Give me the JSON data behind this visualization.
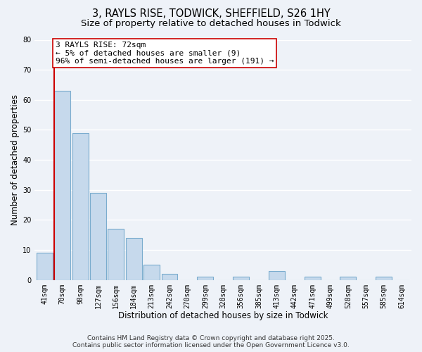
{
  "title": "3, RAYLS RISE, TODWICK, SHEFFIELD, S26 1HY",
  "subtitle": "Size of property relative to detached houses in Todwick",
  "xlabel": "Distribution of detached houses by size in Todwick",
  "ylabel": "Number of detached properties",
  "categories": [
    "41sqm",
    "70sqm",
    "98sqm",
    "127sqm",
    "156sqm",
    "184sqm",
    "213sqm",
    "242sqm",
    "270sqm",
    "299sqm",
    "328sqm",
    "356sqm",
    "385sqm",
    "413sqm",
    "442sqm",
    "471sqm",
    "499sqm",
    "528sqm",
    "557sqm",
    "585sqm",
    "614sqm"
  ],
  "values": [
    9,
    63,
    49,
    29,
    17,
    14,
    5,
    2,
    0,
    1,
    0,
    1,
    0,
    3,
    0,
    1,
    0,
    1,
    0,
    1,
    0
  ],
  "bar_color": "#c6d9ec",
  "bar_edge_color": "#7aacce",
  "highlight_line_color": "#cc0000",
  "annotation_line1": "3 RAYLS RISE: 72sqm",
  "annotation_line2": "← 5% of detached houses are smaller (9)",
  "annotation_line3": "96% of semi-detached houses are larger (191) →",
  "annotation_box_color": "#ffffff",
  "annotation_box_edge_color": "#cc0000",
  "ylim": [
    0,
    80
  ],
  "yticks": [
    0,
    10,
    20,
    30,
    40,
    50,
    60,
    70,
    80
  ],
  "footer_line1": "Contains HM Land Registry data © Crown copyright and database right 2025.",
  "footer_line2": "Contains public sector information licensed under the Open Government Licence v3.0.",
  "bg_color": "#eef2f8",
  "grid_color": "#ffffff",
  "title_fontsize": 10.5,
  "subtitle_fontsize": 9.5,
  "axis_label_fontsize": 8.5,
  "tick_fontsize": 7,
  "annotation_fontsize": 8,
  "footer_fontsize": 6.5
}
